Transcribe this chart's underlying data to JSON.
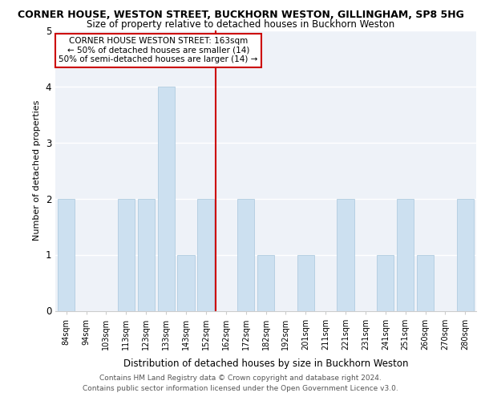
{
  "title": "CORNER HOUSE, WESTON STREET, BUCKHORN WESTON, GILLINGHAM, SP8 5HG",
  "subtitle": "Size of property relative to detached houses in Buckhorn Weston",
  "xlabel": "Distribution of detached houses by size in Buckhorn Weston",
  "ylabel": "Number of detached properties",
  "footer_line1": "Contains HM Land Registry data © Crown copyright and database right 2024.",
  "footer_line2": "Contains public sector information licensed under the Open Government Licence v3.0.",
  "bin_labels": [
    "84sqm",
    "94sqm",
    "103sqm",
    "113sqm",
    "123sqm",
    "133sqm",
    "143sqm",
    "152sqm",
    "162sqm",
    "172sqm",
    "182sqm",
    "192sqm",
    "201sqm",
    "211sqm",
    "221sqm",
    "231sqm",
    "241sqm",
    "251sqm",
    "260sqm",
    "270sqm",
    "280sqm"
  ],
  "bar_heights": [
    2,
    0,
    0,
    2,
    2,
    4,
    1,
    2,
    0,
    2,
    1,
    0,
    1,
    0,
    2,
    0,
    1,
    2,
    1,
    0,
    2
  ],
  "bar_color": "#cce0f0",
  "bar_edgecolor": "#b0cce0",
  "subject_line_color": "#cc0000",
  "ylim": [
    0,
    5
  ],
  "yticks": [
    0,
    1,
    2,
    3,
    4,
    5
  ],
  "annotation_title": "CORNER HOUSE WESTON STREET: 163sqm",
  "annotation_line1": "← 50% of detached houses are smaller (14)",
  "annotation_line2": "50% of semi-detached houses are larger (14) →",
  "annotation_box_color": "#cc0000",
  "background_color": "#eef2f8",
  "grid_color": "#ffffff",
  "title_fontsize": 9,
  "subtitle_fontsize": 8.5,
  "tick_fontsize": 7,
  "ylabel_fontsize": 8,
  "xlabel_fontsize": 8.5,
  "footer_fontsize": 6.5,
  "ann_fontsize": 7.5
}
